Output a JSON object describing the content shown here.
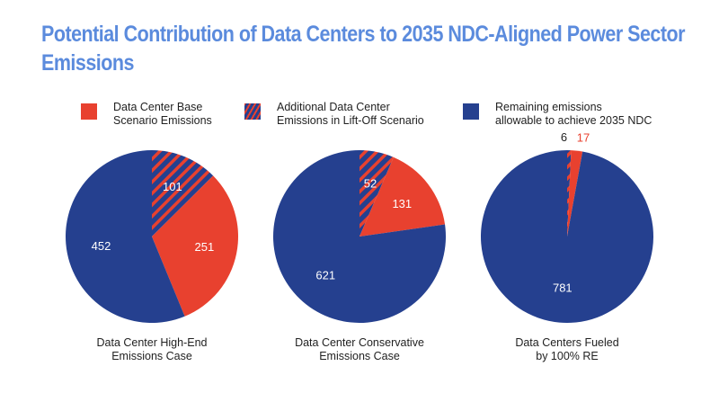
{
  "chart_data": {
    "type": "pie",
    "title": "Potential Contribution of Data Centers to 2035 NDC-Aligned Power Sector Emissions",
    "legend": [
      {
        "name": "Data Center Base Scenario Emissions",
        "color": "#e8412f",
        "pattern": "solid"
      },
      {
        "name": "Additional Data Center Emissions in Lift-Off Scenario",
        "color": "#e8412f",
        "pattern": "hatched-on-blue"
      },
      {
        "name": "Remaining emissions allowable to achieve 2035 NDC",
        "color": "#25408f",
        "pattern": "solid"
      }
    ],
    "legend_position": "top",
    "start_angle": "12 o'clock, clockwise",
    "charts": [
      {
        "caption": "Data Center High-End Emissions Case",
        "slices": [
          {
            "series": "Additional Data Center Emissions in Lift-Off Scenario",
            "value": 101
          },
          {
            "series": "Data Center Base Scenario Emissions",
            "value": 251
          },
          {
            "series": "Remaining emissions allowable to achieve 2035 NDC",
            "value": 452
          }
        ]
      },
      {
        "caption": "Data Center Conservative Emissions Case",
        "slices": [
          {
            "series": "Additional Data Center Emissions in Lift-Off Scenario",
            "value": 52
          },
          {
            "series": "Data Center Base Scenario Emissions",
            "value": 131
          },
          {
            "series": "Remaining emissions allowable to achieve 2035 NDC",
            "value": 621
          }
        ]
      },
      {
        "caption": "Data Centers Fueled by 100% RE",
        "slices": [
          {
            "series": "Additional Data Center Emissions in Lift-Off Scenario",
            "value": 6
          },
          {
            "series": "Data Center Base Scenario Emissions",
            "value": 17
          },
          {
            "series": "Remaining emissions allowable to achieve 2035 NDC",
            "value": 781
          }
        ]
      }
    ]
  },
  "legend_lines": [
    [
      "Data Center Base",
      "Scenario Emissions"
    ],
    [
      "Additional Data Center",
      "Emissions in Lift-Off Scenario"
    ],
    [
      "Remaining emissions",
      "allowable to achieve 2035 NDC"
    ]
  ],
  "caption_lines": [
    [
      "Data Center High-End",
      "Emissions Case"
    ],
    [
      "Data Center Conservative",
      "Emissions Case"
    ],
    [
      "Data Centers Fueled",
      "by 100% RE"
    ]
  ],
  "colors": {
    "title": "#5b8bdd",
    "red": "#e8412f",
    "blue": "#25408f"
  }
}
